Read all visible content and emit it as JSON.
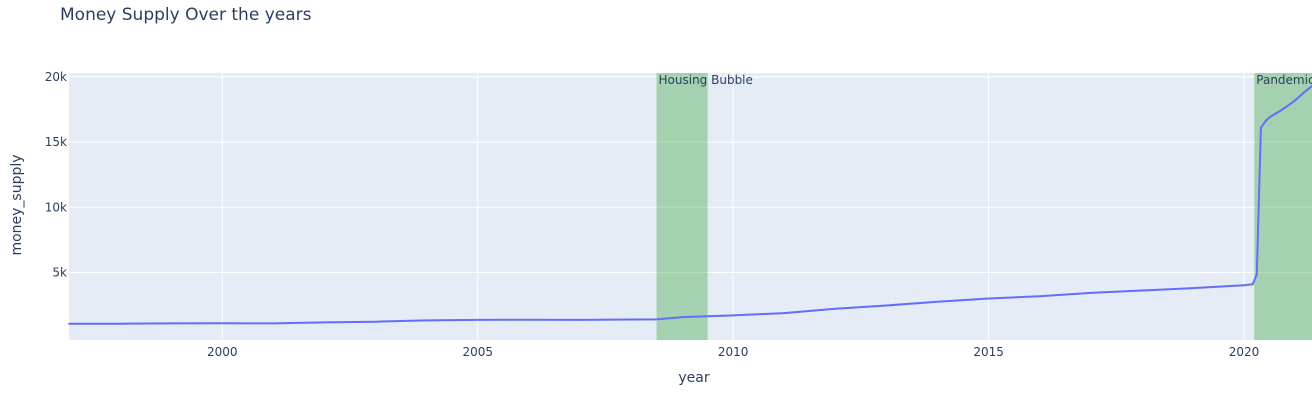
{
  "chart_data": {
    "type": "line",
    "title": "Money Supply Over the years",
    "xlabel": "year",
    "ylabel": "money_supply",
    "xlim": [
      1997.0,
      2021.33
    ],
    "ylim": [
      -180,
      20300
    ],
    "x_ticks": [
      {
        "value": 2000,
        "label": "2000"
      },
      {
        "value": 2005,
        "label": "2005"
      },
      {
        "value": 2010,
        "label": "2010"
      },
      {
        "value": 2015,
        "label": "2015"
      },
      {
        "value": 2020,
        "label": "2020"
      }
    ],
    "y_ticks": [
      {
        "value": 5000,
        "label": "5k"
      },
      {
        "value": 10000,
        "label": "10k"
      },
      {
        "value": 15000,
        "label": "15k"
      },
      {
        "value": 20000,
        "label": "20k"
      }
    ],
    "grid": true,
    "series": [
      {
        "color": "#636efa",
        "x": [
          1997.0,
          1998.0,
          1999.0,
          2000.0,
          2001.0,
          2002.0,
          2003.0,
          2004.0,
          2005.0,
          2006.0,
          2007.0,
          2008.0,
          2008.5,
          2009.0,
          2009.5,
          2010.0,
          2011.0,
          2012.0,
          2013.0,
          2014.0,
          2015.0,
          2016.0,
          2017.0,
          2018.0,
          2019.0,
          2020.0,
          2020.17,
          2020.25,
          2020.33,
          2020.42,
          2020.5,
          2020.75,
          2021.0,
          2021.2,
          2021.33
        ],
        "y": [
          1060,
          1070,
          1090,
          1110,
          1090,
          1170,
          1220,
          1320,
          1360,
          1380,
          1360,
          1390,
          1400,
          1580,
          1640,
          1710,
          1880,
          2220,
          2470,
          2750,
          3000,
          3180,
          3430,
          3620,
          3800,
          4020,
          4100,
          4850,
          16100,
          16600,
          16900,
          17500,
          18200,
          18900,
          19300
        ]
      }
    ],
    "shaded_regions": [
      {
        "label": "Housing Bubble",
        "x0": 2008.5,
        "x1": 2009.5,
        "color": "#2ca02c",
        "opacity": 0.35
      },
      {
        "label": "Pandemic",
        "x0": 2020.2,
        "x1": 2021.33,
        "color": "#2ca02c",
        "opacity": 0.35
      }
    ],
    "colors": {
      "plot_bg": "#e5ecf6",
      "grid": "#ffffff",
      "text": "#2a3f5f"
    }
  }
}
